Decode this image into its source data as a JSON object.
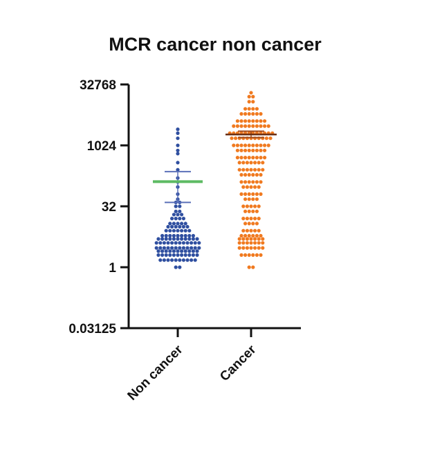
{
  "chart_data": {
    "type": "scatter",
    "subtype": "dot-plot",
    "title": "MCR cancer non cancer",
    "xlabel": "",
    "ylabel": "",
    "y_scale": "log2",
    "ylim": [
      0.03125,
      32768
    ],
    "y_ticks": [
      {
        "value": 0.03125,
        "label": "0.03125"
      },
      {
        "value": 1,
        "label": "1"
      },
      {
        "value": 32,
        "label": "32"
      },
      {
        "value": 1024,
        "label": "1024"
      },
      {
        "value": 32768,
        "label": "32768"
      }
    ],
    "grid": false,
    "legend": "none",
    "categories": [
      "Non cancer",
      "Cancer"
    ],
    "series": [
      {
        "category": "Non cancer",
        "color": "#2f4fa0",
        "values": [
          1,
          1,
          1.5,
          1.5,
          1.5,
          1.5,
          1.5,
          1.5,
          1.5,
          1.5,
          1.5,
          1.5,
          2,
          2,
          2,
          2,
          2,
          2,
          2,
          2,
          2,
          2,
          2,
          2.5,
          2.5,
          2.5,
          2.5,
          2.5,
          2.5,
          2.5,
          2.5,
          2.5,
          2.5,
          2.5,
          3,
          3,
          3,
          3,
          3,
          3,
          3,
          3,
          3,
          3,
          3,
          3,
          4,
          4,
          4,
          4,
          4,
          4,
          4,
          4,
          4,
          4,
          4,
          4,
          5,
          5,
          5,
          5,
          5,
          5,
          5,
          5,
          5,
          5,
          5,
          6,
          6,
          6,
          6,
          6,
          6,
          6,
          6,
          6,
          8,
          8,
          8,
          8,
          8,
          8,
          8,
          10,
          10,
          10,
          10,
          10,
          10,
          12,
          12,
          12,
          12,
          12,
          16,
          16,
          16,
          16,
          20,
          20,
          20,
          24,
          24,
          32,
          32,
          40,
          40,
          48,
          64,
          96,
          128,
          160,
          256,
          384,
          640,
          768,
          1024,
          1536,
          2048,
          2560
        ],
        "mean": 130,
        "error_upper": 230,
        "error_lower": 40
      },
      {
        "category": "Cancer",
        "color": "#f07a20",
        "values": [
          1,
          1,
          2,
          2,
          2,
          2,
          2,
          2,
          3,
          3,
          3,
          3,
          3,
          3,
          3,
          4,
          4,
          4,
          4,
          4,
          4,
          4,
          5,
          5,
          5,
          5,
          5,
          5,
          5,
          6,
          6,
          6,
          6,
          6,
          6,
          8,
          8,
          8,
          8,
          8,
          12,
          12,
          12,
          12,
          16,
          16,
          16,
          16,
          16,
          24,
          24,
          24,
          24,
          32,
          32,
          32,
          32,
          32,
          48,
          48,
          48,
          48,
          64,
          64,
          64,
          64,
          64,
          64,
          96,
          96,
          96,
          96,
          96,
          128,
          128,
          128,
          128,
          128,
          128,
          192,
          192,
          192,
          192,
          192,
          192,
          256,
          256,
          256,
          256,
          256,
          256,
          256,
          384,
          384,
          384,
          384,
          384,
          384,
          384,
          512,
          512,
          512,
          512,
          512,
          512,
          512,
          512,
          768,
          768,
          768,
          768,
          768,
          768,
          768,
          768,
          1024,
          1024,
          1024,
          1024,
          1024,
          1024,
          1024,
          1024,
          1024,
          1024,
          1536,
          1536,
          1536,
          1536,
          1536,
          1536,
          1536,
          1536,
          1536,
          1536,
          1536,
          2048,
          2048,
          2048,
          2048,
          2048,
          2048,
          2048,
          2048,
          2048,
          2048,
          2048,
          2048,
          3072,
          3072,
          3072,
          3072,
          3072,
          3072,
          3072,
          3072,
          3072,
          3072,
          4096,
          4096,
          4096,
          4096,
          4096,
          4096,
          4096,
          4096,
          6144,
          6144,
          6144,
          6144,
          6144,
          6144,
          8192,
          8192,
          8192,
          8192,
          12288,
          12288,
          16384,
          16384,
          20480
        ],
        "mean": 1900,
        "error_upper": 2300,
        "error_lower": 1600
      }
    ],
    "reference_line": {
      "category": "Non cancer",
      "value": 130,
      "color": "#5dbb63"
    }
  }
}
